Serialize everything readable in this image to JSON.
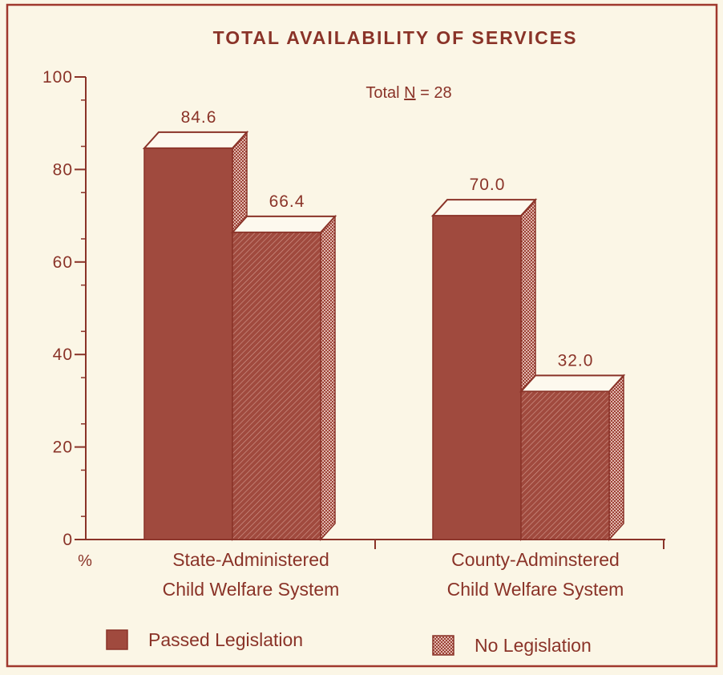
{
  "chart_data": {
    "type": "bar",
    "title": "TOTAL AVAILABILITY OF SERVICES",
    "annotation": {
      "prefix": "Total ",
      "n_symbol": "N",
      "suffix": " = 28"
    },
    "ylabel": "%",
    "ylim": [
      0,
      100
    ],
    "yticks": [
      "0",
      "20",
      "40",
      "60",
      "80",
      "100"
    ],
    "categories": [
      [
        "State-Administered",
        "Child Welfare System"
      ],
      [
        "County-Adminstered",
        "Child Welfare System"
      ]
    ],
    "series": [
      {
        "name": "Passed Legislation",
        "values": [
          84.6,
          70.0
        ],
        "labels": [
          "84.6",
          "70.0"
        ],
        "style": "solid"
      },
      {
        "name": "No Legislation",
        "values": [
          66.4,
          32.0
        ],
        "labels": [
          "66.4",
          "32.0"
        ],
        "style": "hatched"
      }
    ],
    "colors": {
      "bar": "#a04a3e",
      "bar_top": "#fdf9ee",
      "bar_side": "#b3584b",
      "ink": "#8a3328",
      "frame": "#a0382d",
      "background": "#fbf6e6"
    },
    "grid": false,
    "legend_position": "bottom"
  }
}
